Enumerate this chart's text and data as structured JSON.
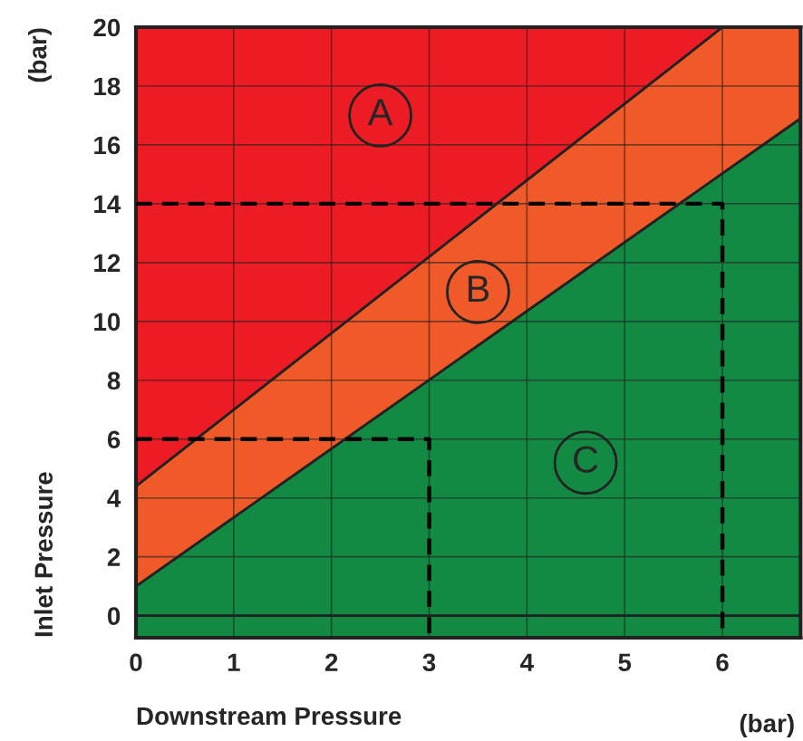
{
  "chart_data": {
    "type": "area",
    "xlabel": "Downstream Pressure",
    "ylabel": "Inlet Pressure",
    "xlim": [
      0,
      6.8
    ],
    "ylim": [
      -0.75,
      20
    ],
    "xticks": [
      0,
      1,
      2,
      3,
      4,
      5,
      6
    ],
    "yticks": [
      0,
      2,
      4,
      6,
      8,
      10,
      12,
      14,
      16,
      18,
      20
    ],
    "grid": true,
    "stacked": true,
    "legend": false,
    "marker": "none",
    "series": [
      {
        "type": "area",
        "color": "#138a43",
        "x": [
          0,
          6,
          6.8
        ],
        "values": [
          1.0,
          15.03,
          16.9
        ]
      },
      {
        "type": "area",
        "color": "#f05a28",
        "x": [
          0,
          6,
          6.8
        ],
        "values": [
          3.4,
          4.97,
          3.1
        ]
      },
      {
        "type": "area",
        "color": "#ed1c24",
        "x": [
          0,
          6,
          6.8
        ],
        "values": [
          15.6,
          0,
          0
        ]
      },
      {
        "type": "line",
        "color": "#000000",
        "line_style": "dashed",
        "x": [
          0,
          6,
          6
        ],
        "values": [
          14,
          14,
          -0.75
        ]
      },
      {
        "type": "line",
        "color": "#000000",
        "line_style": "dashed",
        "x": [
          0,
          3,
          3
        ],
        "values": [
          6,
          6,
          -0.75
        ]
      }
    ],
    "annotations": [
      {
        "text": "A",
        "x": 2.5,
        "y": 17
      },
      {
        "text": "B",
        "x": 3.5,
        "y": 11
      },
      {
        "text": "C",
        "x": 4.6,
        "y": 5.2
      },
      "(bar)",
      "(bar)"
    ]
  }
}
